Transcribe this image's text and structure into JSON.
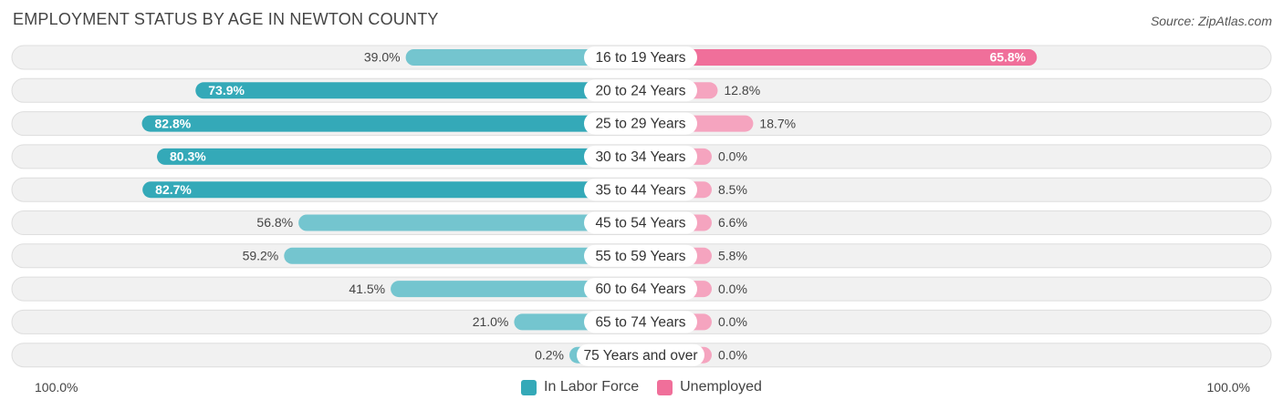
{
  "title": "EMPLOYMENT STATUS BY AGE IN NEWTON COUNTY",
  "source": "Source: ZipAtlas.com",
  "colors": {
    "labor": "#34a9b8",
    "labor_light": "#74c5cf",
    "unemployed": "#f06f9a",
    "unemployed_light": "#f5a4bf",
    "row_bg": "#f1f1f1",
    "row_border": "#dedede"
  },
  "chart_data": {
    "type": "bar",
    "title": "EMPLOYMENT STATUS BY AGE IN NEWTON COUNTY",
    "categories": [
      "16 to 19 Years",
      "20 to 24 Years",
      "25 to 29 Years",
      "30 to 34 Years",
      "35 to 44 Years",
      "45 to 54 Years",
      "55 to 59 Years",
      "60 to 64 Years",
      "65 to 74 Years",
      "75 Years and over"
    ],
    "series": [
      {
        "name": "In Labor Force",
        "values": [
          39.0,
          73.9,
          82.8,
          80.3,
          82.7,
          56.8,
          59.2,
          41.5,
          21.0,
          0.2
        ],
        "labels": [
          "39.0%",
          "73.9%",
          "82.8%",
          "80.3%",
          "82.7%",
          "56.8%",
          "59.2%",
          "41.5%",
          "21.0%",
          "0.2%"
        ]
      },
      {
        "name": "Unemployed",
        "values": [
          65.8,
          12.8,
          18.7,
          0.0,
          8.5,
          6.6,
          5.8,
          0.0,
          0.0,
          0.0
        ],
        "labels": [
          "65.8%",
          "12.8%",
          "18.7%",
          "0.0%",
          "8.5%",
          "6.6%",
          "5.8%",
          "0.0%",
          "0.0%",
          "0.0%"
        ]
      }
    ],
    "axis_left_label": "100.0%",
    "axis_right_label": "100.0%",
    "xlim": [
      -100,
      100
    ],
    "legend_position": "bottom-center"
  }
}
